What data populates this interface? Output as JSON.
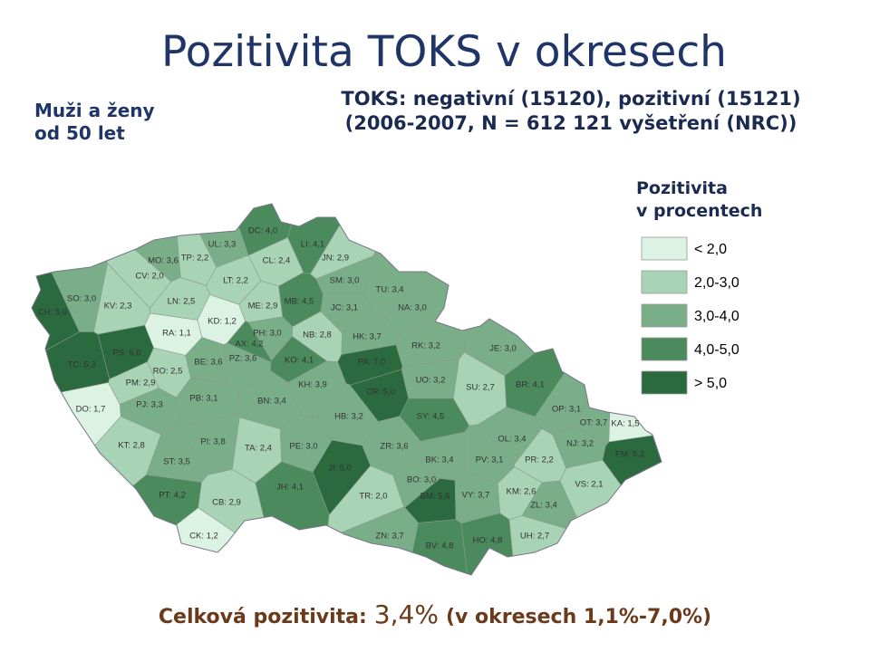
{
  "header": {
    "title": "Pozitivita TOKS v okresech",
    "side_label": [
      "Muži a ženy",
      "od 50 let"
    ],
    "subtitle": [
      "TOKS: negativní (15120), pozitivní (15121)",
      "(2006-2007, N = 612 121 vyšetření (NRC))"
    ]
  },
  "legend": {
    "title": [
      "Pozitivita",
      "v procentech"
    ],
    "items": [
      {
        "label": "< 2,0",
        "color": "#dcf2e3",
        "max": 2
      },
      {
        "label": "2,0-3,0",
        "color": "#a9d3b5",
        "min": 2,
        "max": 3
      },
      {
        "label": "3,0-4,0",
        "color": "#7aae88",
        "min": 3,
        "max": 4
      },
      {
        "label": "4,0-5,0",
        "color": "#4a8a5c",
        "min": 4,
        "max": 5
      },
      {
        "label": "> 5,0",
        "color": "#2a6a3e",
        "min": 5
      }
    ]
  },
  "districts": [
    {
      "label": "DC: 4,0",
      "value": 4.0
    },
    {
      "label": "UL: 3,3",
      "value": 3.3
    },
    {
      "label": "LI: 4,1",
      "value": 4.1
    },
    {
      "label": "TP: 2,2",
      "value": 2.2
    },
    {
      "label": "MO: 3,6",
      "value": 3.6
    },
    {
      "label": "CL: 2,4",
      "value": 2.4
    },
    {
      "label": "JN: 2,9",
      "value": 2.9
    },
    {
      "label": "CV: 2,0",
      "value": 2.0
    },
    {
      "label": "LT: 2,2",
      "value": 2.2
    },
    {
      "label": "SM: 3,0",
      "value": 3.0
    },
    {
      "label": "TU: 3,4",
      "value": 3.4
    },
    {
      "label": "SO: 3,0",
      "value": 3.0
    },
    {
      "label": "CH: 5,0",
      "value": 5.0
    },
    {
      "label": "KV: 2,3",
      "value": 2.3
    },
    {
      "label": "LN: 2,5",
      "value": 2.5
    },
    {
      "label": "ME: 2,9",
      "value": 2.9
    },
    {
      "label": "MB: 4,5",
      "value": 4.5
    },
    {
      "label": "JC: 3,1",
      "value": 3.1
    },
    {
      "label": "NA: 3,0",
      "value": 3.0
    },
    {
      "label": "KD: 1,2",
      "value": 1.2
    },
    {
      "label": "RA: 1,1",
      "value": 1.1
    },
    {
      "label": "PH: 3,0",
      "value": 3.0
    },
    {
      "label": "NB: 2,8",
      "value": 2.8
    },
    {
      "label": "HK: 3,7",
      "value": 3.7
    },
    {
      "label": "AX: 4,2",
      "value": 4.2
    },
    {
      "label": "RK: 3,2",
      "value": 3.2
    },
    {
      "label": "JE: 3,0",
      "value": 3.0
    },
    {
      "label": "PS: 5,6",
      "value": 5.6
    },
    {
      "label": "BE: 3,6",
      "value": 3.6
    },
    {
      "label": "PZ: 3,6",
      "value": 3.6
    },
    {
      "label": "KO: 4,1",
      "value": 4.1
    },
    {
      "label": "PA: 7,0",
      "value": 7.0
    },
    {
      "label": "TC: 5,3",
      "value": 5.3
    },
    {
      "label": "RO: 2,5",
      "value": 2.5
    },
    {
      "label": "PM: 2,9",
      "value": 2.9
    },
    {
      "label": "KH: 3,9",
      "value": 3.9
    },
    {
      "label": "UO: 3,2",
      "value": 3.2
    },
    {
      "label": "SU: 2,7",
      "value": 2.7
    },
    {
      "label": "BR: 4,1",
      "value": 4.1
    },
    {
      "label": "CR: 5,0",
      "value": 5.0
    },
    {
      "label": "PB: 3,1",
      "value": 3.1
    },
    {
      "label": "BN: 3,4",
      "value": 3.4
    },
    {
      "label": "PJ: 3,3",
      "value": 3.3
    },
    {
      "label": "DO: 1,7",
      "value": 1.7
    },
    {
      "label": "OP: 3,1",
      "value": 3.1
    },
    {
      "label": "HB: 3,2",
      "value": 3.2
    },
    {
      "label": "SY: 4,5",
      "value": 4.5
    },
    {
      "label": "OT: 3,7",
      "value": 3.7
    },
    {
      "label": "KA: 1,5",
      "value": 1.5
    },
    {
      "label": "OL: 3,4",
      "value": 3.4
    },
    {
      "label": "NJ: 3,2",
      "value": 3.2
    },
    {
      "label": "KT: 2,8",
      "value": 2.8
    },
    {
      "label": "PI: 3,8",
      "value": 3.8
    },
    {
      "label": "TA: 2,4",
      "value": 2.4
    },
    {
      "label": "PE: 3,0",
      "value": 3.0
    },
    {
      "label": "ZR: 3,6",
      "value": 3.6
    },
    {
      "label": "FM: 5,3",
      "value": 5.3
    },
    {
      "label": "BK: 3,4",
      "value": 3.4
    },
    {
      "label": "PV: 3,1",
      "value": 3.1
    },
    {
      "label": "PR: 2,2",
      "value": 2.2
    },
    {
      "label": "ST: 3,5",
      "value": 3.5
    },
    {
      "label": "JI: 5,0",
      "value": 5.0
    },
    {
      "label": "BO: 3,0",
      "value": 3.0
    },
    {
      "label": "VS: 2,1",
      "value": 2.1
    },
    {
      "label": "JH: 4,1",
      "value": 4.1
    },
    {
      "label": "KM: 2,6",
      "value": 2.6
    },
    {
      "label": "PT: 4,2",
      "value": 4.2
    },
    {
      "label": "BM: 5,6",
      "value": 5.6
    },
    {
      "label": "VY: 3,7",
      "value": 3.7
    },
    {
      "label": "TR: 2,0",
      "value": 2.0
    },
    {
      "label": "CB: 2,9",
      "value": 2.9
    },
    {
      "label": "ZL: 3,4",
      "value": 3.4
    },
    {
      "label": "ZN: 3,7",
      "value": 3.7
    },
    {
      "label": "HO: 4,8",
      "value": 4.8
    },
    {
      "label": "UH: 2,7",
      "value": 2.7
    },
    {
      "label": "BV: 4,8",
      "value": 4.8
    },
    {
      "label": "CK: 1,2",
      "value": 1.2
    }
  ],
  "footer": {
    "prefix": "Celková pozitivita:",
    "total": "3,4%",
    "range": "(v okresech 1,1%-7,0%)"
  }
}
